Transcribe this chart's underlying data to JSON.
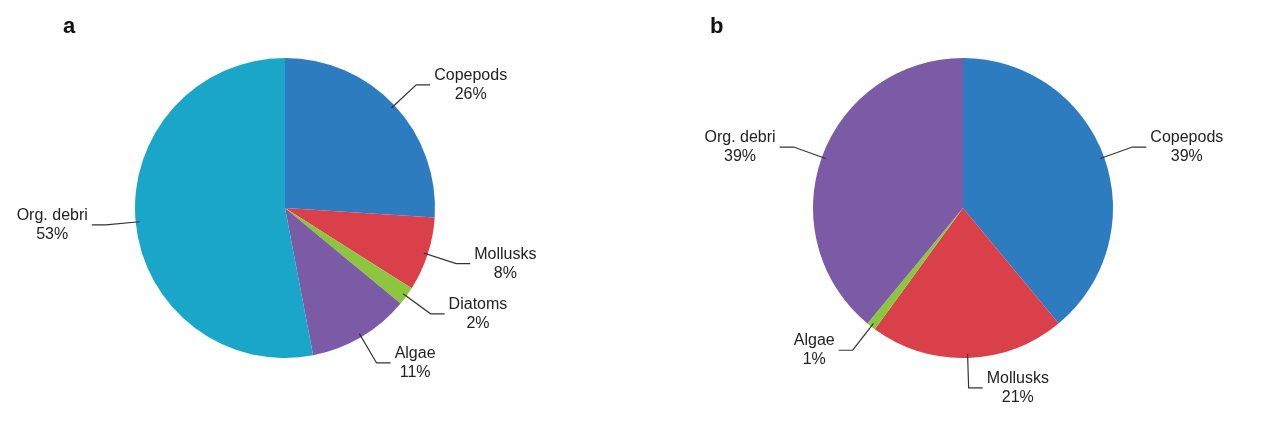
{
  "chart_data": [
    {
      "type": "pie",
      "title": "a",
      "categories": [
        "Copepods",
        "Mollusks",
        "Diatoms",
        "Algae",
        "Org. debri"
      ],
      "values": [
        26,
        8,
        2,
        11,
        53
      ],
      "value_labels": [
        "26%",
        "8%",
        "2%",
        "11%",
        "53%"
      ],
      "colors": [
        "#2e7cc0",
        "#d9404a",
        "#8cc63f",
        "#7b5ba6",
        "#1aa6c8"
      ]
    },
    {
      "type": "pie",
      "title": "b",
      "categories": [
        "Copepods",
        "Mollusks",
        "Algae",
        "Org. debri"
      ],
      "values": [
        39,
        21,
        1,
        39
      ],
      "value_labels": [
        "39%",
        "21%",
        "1%",
        "39%"
      ],
      "colors": [
        "#2e7cc0",
        "#d9404a",
        "#8cc63f",
        "#7b5ba6"
      ]
    }
  ]
}
